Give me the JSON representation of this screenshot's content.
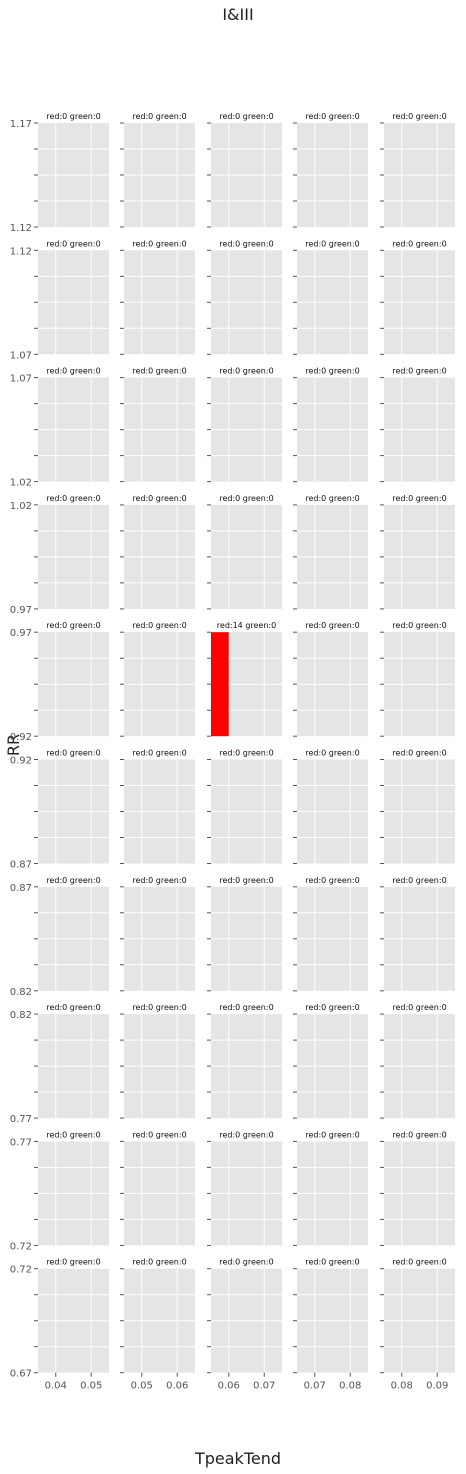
{
  "chart_data": {
    "type": "heatmap",
    "title": "I&III",
    "xlabel": "TpeakTend",
    "ylabel": "RR",
    "grid": true,
    "rows": [
      {
        "ylim": [
          1.12,
          1.17
        ],
        "yticks": [
          "1.17",
          "1.12"
        ]
      },
      {
        "ylim": [
          1.07,
          1.12
        ],
        "yticks": [
          "1.12",
          "1.07"
        ]
      },
      {
        "ylim": [
          1.02,
          1.07
        ],
        "yticks": [
          "1.07",
          "1.02"
        ]
      },
      {
        "ylim": [
          0.97,
          1.02
        ],
        "yticks": [
          "1.02",
          "0.97"
        ]
      },
      {
        "ylim": [
          0.92,
          0.97
        ],
        "yticks": [
          "0.97",
          "0.92"
        ]
      },
      {
        "ylim": [
          0.87,
          0.92
        ],
        "yticks": [
          "0.92",
          "0.87"
        ]
      },
      {
        "ylim": [
          0.82,
          0.87
        ],
        "yticks": [
          "0.87",
          "0.82"
        ]
      },
      {
        "ylim": [
          0.77,
          0.82
        ],
        "yticks": [
          "0.82",
          "0.77"
        ]
      },
      {
        "ylim": [
          0.72,
          0.77
        ],
        "yticks": [
          "0.77",
          "0.72"
        ]
      },
      {
        "ylim": [
          0.67,
          0.72
        ],
        "yticks": [
          "0.72",
          "0.67"
        ]
      }
    ],
    "columns": [
      {
        "xlim": [
          0.035,
          0.055
        ],
        "xticks": [
          "0.04",
          "0.05"
        ]
      },
      {
        "xlim": [
          0.045,
          0.065
        ],
        "xticks": [
          "0.05",
          "0.06"
        ]
      },
      {
        "xlim": [
          0.055,
          0.075
        ],
        "xticks": [
          "0.06",
          "0.07"
        ]
      },
      {
        "xlim": [
          0.065,
          0.085
        ],
        "xticks": [
          "0.07",
          "0.08"
        ]
      },
      {
        "xlim": [
          0.075,
          0.095
        ],
        "xticks": [
          "0.08",
          "0.09"
        ]
      }
    ],
    "cells": [
      [
        "red:0 green:0",
        "red:0 green:0",
        "red:0 green:0",
        "red:0 green:0",
        "red:0 green:0"
      ],
      [
        "red:0 green:0",
        "red:0 green:0",
        "red:0 green:0",
        "red:0 green:0",
        "red:0 green:0"
      ],
      [
        "red:0 green:0",
        "red:0 green:0",
        "red:0 green:0",
        "red:0 green:0",
        "red:0 green:0"
      ],
      [
        "red:0 green:0",
        "red:0 green:0",
        "red:0 green:0",
        "red:0 green:0",
        "red:0 green:0"
      ],
      [
        "red:0 green:0",
        "red:0 green:0",
        "red:14 green:0",
        "red:0 green:0",
        "red:0 green:0"
      ],
      [
        "red:0 green:0",
        "red:0 green:0",
        "red:0 green:0",
        "red:0 green:0",
        "red:0 green:0"
      ],
      [
        "red:0 green:0",
        "red:0 green:0",
        "red:0 green:0",
        "red:0 green:0",
        "red:0 green:0"
      ],
      [
        "red:0 green:0",
        "red:0 green:0",
        "red:0 green:0",
        "red:0 green:0",
        "red:0 green:0"
      ],
      [
        "red:0 green:0",
        "red:0 green:0",
        "red:0 green:0",
        "red:0 green:0",
        "red:0 green:0"
      ],
      [
        "red:0 green:0",
        "red:0 green:0",
        "red:0 green:0",
        "red:0 green:0",
        "red:0 green:0"
      ]
    ],
    "bars": [
      {
        "row": 4,
        "col": 2,
        "x": [
          0.055,
          0.06
        ],
        "y": [
          0.92,
          0.97
        ],
        "color": "#ff0000"
      }
    ],
    "colors": {
      "panel": "#e5e5e5",
      "grid": "#ffffff",
      "tick_text": "#555555",
      "red": "#ff0000"
    }
  }
}
